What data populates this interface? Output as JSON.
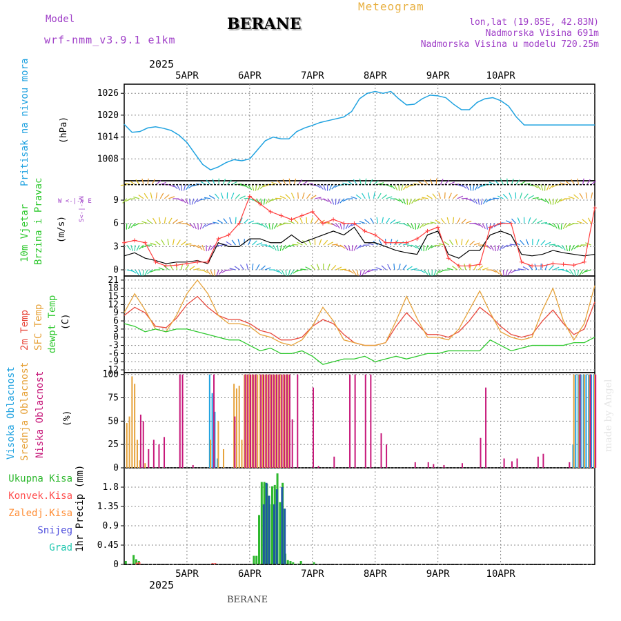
{
  "header": {
    "model_label": "Model",
    "model_name": "wrf-nmm_v3.9.1 e1km",
    "station": "BERANE",
    "product": "Meteogram",
    "coords": "lon,lat (19.85E, 42.83N)",
    "elevation": "Nadmorska Visina 691m",
    "model_elevation": "Nadmorska Visina u modelu 720.25m",
    "year_top": "2025",
    "year_bottom": "2025",
    "footer_station": "BERANE",
    "watermark": "made by Angel"
  },
  "colors": {
    "pressure": "#1fa2e0",
    "temp2m": "#e8483c",
    "sfc_temp": "#e6a23a",
    "dewpoint": "#2ec82e",
    "wind_speed": "#000000",
    "wind_gust": "#ff3b3b",
    "high_cloud": "#1fa2e0",
    "mid_cloud": "#e6a23a",
    "low_cloud": "#c7187a",
    "total_precip": "#2eb82e",
    "conv_precip": "#ff4d4d",
    "freezing_rain": "#ff8c33",
    "snow": "#4b4bdc",
    "graupel": "#22c8b0",
    "accum_precip": "#1e5aa0"
  },
  "chart_data": [
    {
      "type": "line",
      "id": "pressure",
      "label_left": "Pritisak na nivou mora",
      "units": "(hPa)",
      "x_dates": [
        "5APR",
        "6APR",
        "7APR",
        "8APR",
        "9APR",
        "10APR"
      ],
      "yticks": [
        "1008",
        "1014",
        "1020",
        "1026"
      ],
      "ylim": [
        1002,
        1028.5
      ],
      "series": [
        {
          "x": [
            0,
            3,
            6,
            9,
            12,
            15,
            18,
            21,
            24,
            27,
            30,
            33,
            36,
            39,
            42,
            45,
            48,
            51,
            54,
            57,
            60,
            63,
            66,
            69,
            72,
            75,
            78,
            81,
            84,
            87,
            90,
            93,
            96,
            99,
            102,
            105,
            108,
            111,
            114,
            117,
            120,
            123,
            126,
            129,
            132,
            135,
            138,
            141,
            144,
            147,
            150,
            153,
            156,
            159,
            162,
            165,
            168,
            171,
            174,
            177,
            180
          ],
          "values": [
            1017.5,
            1015.3,
            1015.5,
            1016.5,
            1016.8,
            1016.4,
            1015.8,
            1014.5,
            1012.5,
            1009.5,
            1006.5,
            1005.0,
            1005.8,
            1007.0,
            1007.8,
            1007.5,
            1008.0,
            1010.5,
            1013.0,
            1014.0,
            1013.5,
            1013.5,
            1015.5,
            1016.5,
            1017.2,
            1018.0,
            1018.5,
            1019.0,
            1019.5,
            1021.0,
            1024.5,
            1026.0,
            1026.5,
            1026.0,
            1026.5,
            1024.5,
            1022.8,
            1023.0,
            1024.5,
            1025.5,
            1025.3,
            1024.8,
            1023.0,
            1021.5,
            1021.5,
            1023.5,
            1024.5,
            1024.8,
            1024.0,
            1022.5,
            1019.5,
            1017.3,
            1017.3,
            1017.3,
            1017.3,
            1017.3,
            1017.3,
            1017.3,
            1017.3,
            1017.3,
            1017.3
          ]
        }
      ]
    },
    {
      "type": "line",
      "id": "wind",
      "label_left_1": "10m Vjetar",
      "label_left_2": "Brzina i Pravac",
      "units": "(m/s)",
      "compass": "W <-|-> E",
      "compass_ns": "S<-|->N",
      "yticks": [
        "0",
        "3",
        "6",
        "9"
      ],
      "ylim": [
        -0.8,
        11.5
      ],
      "series": [
        {
          "name": "speed",
          "x": [
            0,
            4,
            8,
            12,
            16,
            20,
            24,
            28,
            32,
            36,
            40,
            44,
            48,
            52,
            56,
            60,
            64,
            68,
            72,
            76,
            80,
            84,
            88,
            92,
            96,
            100,
            104,
            108,
            112,
            116,
            120,
            124,
            128,
            132,
            136,
            140,
            144,
            148,
            152,
            156,
            160,
            164,
            168,
            172,
            176,
            180
          ],
          "values": [
            1.8,
            2.2,
            1.5,
            1.2,
            0.8,
            1.0,
            1.0,
            1.2,
            0.8,
            3.5,
            3.0,
            3.0,
            4.0,
            4.0,
            3.5,
            3.5,
            4.5,
            3.5,
            4.0,
            4.5,
            5.0,
            4.5,
            5.5,
            3.5,
            3.5,
            3.0,
            2.5,
            2.2,
            2.0,
            4.5,
            5.0,
            2.0,
            1.5,
            2.5,
            2.5,
            4.5,
            5.0,
            4.5,
            2.0,
            1.8,
            2.0,
            2.5,
            2.2,
            2.0,
            1.8,
            2.0
          ]
        },
        {
          "name": "gust",
          "x": [
            0,
            4,
            8,
            12,
            16,
            20,
            24,
            28,
            32,
            36,
            40,
            44,
            48,
            52,
            56,
            60,
            64,
            68,
            72,
            76,
            80,
            84,
            88,
            92,
            96,
            100,
            104,
            108,
            112,
            116,
            120,
            124,
            128,
            132,
            136,
            140,
            144,
            148,
            152,
            156,
            160,
            164,
            168,
            172,
            176,
            180
          ],
          "values": [
            3.5,
            3.8,
            3.5,
            1.0,
            0.5,
            0.6,
            0.8,
            1.0,
            1.0,
            4.0,
            4.5,
            6.0,
            9.5,
            8.5,
            7.5,
            7.0,
            6.5,
            7.0,
            7.5,
            6.0,
            6.5,
            6.0,
            6.0,
            5.0,
            4.5,
            3.5,
            3.5,
            3.5,
            4.0,
            5.0,
            5.5,
            1.5,
            0.5,
            0.5,
            0.7,
            5.5,
            6.0,
            6.0,
            1.0,
            0.5,
            0.5,
            0.8,
            0.7,
            0.6,
            1.0,
            8.0
          ]
        }
      ]
    },
    {
      "type": "line",
      "id": "temperature",
      "label_left_1": "2m Temp",
      "label_left_2": "SFC Temp",
      "label_left_3": "dewpt Temp",
      "units": "(C)",
      "yticks": [
        "21",
        "18",
        "15",
        "12",
        "9",
        "6",
        "3",
        "0",
        "-3",
        "-6",
        "-9",
        "-12"
      ],
      "ylim": [
        -13,
        22.5
      ],
      "series": [
        {
          "name": "2m",
          "x": [
            0,
            4,
            8,
            12,
            16,
            20,
            24,
            28,
            32,
            36,
            40,
            44,
            48,
            52,
            56,
            60,
            64,
            68,
            72,
            76,
            80,
            84,
            88,
            92,
            96,
            100,
            104,
            108,
            112,
            116,
            120,
            124,
            128,
            132,
            136,
            140,
            144,
            148,
            152,
            156,
            160,
            164,
            168,
            172,
            176,
            180
          ],
          "values": [
            8,
            11,
            9,
            4,
            3.5,
            7,
            12,
            15,
            11,
            8,
            6.5,
            6.5,
            5,
            2.5,
            1.5,
            -1,
            -1,
            0,
            4,
            6.5,
            5,
            1,
            -2,
            -3,
            -3,
            -2,
            4,
            9,
            5,
            1,
            1,
            0,
            2,
            6,
            11,
            8,
            4,
            1,
            0,
            1,
            6,
            10,
            5,
            1,
            3,
            13
          ]
        },
        {
          "name": "sfc",
          "x": [
            0,
            4,
            8,
            12,
            16,
            20,
            24,
            28,
            32,
            36,
            40,
            44,
            48,
            52,
            56,
            60,
            64,
            68,
            72,
            76,
            80,
            84,
            88,
            92,
            96,
            100,
            104,
            108,
            112,
            116,
            120,
            124,
            128,
            132,
            136,
            140,
            144,
            148,
            152,
            156,
            160,
            164,
            168,
            172,
            176,
            180
          ],
          "values": [
            9,
            16,
            10,
            3,
            2,
            8,
            16,
            21,
            16,
            8,
            5,
            5,
            4,
            1,
            0,
            -2,
            -3,
            -1,
            4,
            11,
            6,
            -1,
            -2,
            -3,
            -3,
            -2,
            6,
            15,
            7,
            0,
            0,
            -1,
            3,
            10,
            17,
            9,
            2,
            0,
            -1,
            0,
            10,
            18,
            6,
            -1,
            5,
            19
          ]
        },
        {
          "name": "dewpt",
          "x": [
            0,
            4,
            8,
            12,
            16,
            20,
            24,
            28,
            32,
            36,
            40,
            44,
            48,
            52,
            56,
            60,
            64,
            68,
            72,
            76,
            80,
            84,
            88,
            92,
            96,
            100,
            104,
            108,
            112,
            116,
            120,
            124,
            128,
            132,
            136,
            140,
            144,
            148,
            152,
            156,
            160,
            164,
            168,
            172,
            176,
            180
          ],
          "values": [
            5,
            4,
            2,
            3,
            2,
            3,
            3,
            2,
            1,
            0,
            -1,
            -1,
            -3,
            -5,
            -4,
            -6,
            -6,
            -5,
            -7,
            -10,
            -9,
            -8,
            -8,
            -7,
            -9,
            -8,
            -7,
            -8,
            -7,
            -6,
            -6,
            -5,
            -5,
            -5,
            -5,
            -1,
            -3,
            -5,
            -4,
            -3,
            -3,
            -3,
            -3,
            -2,
            -2,
            0
          ]
        }
      ]
    },
    {
      "type": "bar",
      "id": "clouds",
      "label_left_1": "Visoka Oblacnost",
      "label_left_2": "Srednja Oblacnost",
      "label_left_3": "Niska Oblacnost",
      "units": "(%)",
      "yticks": [
        "0",
        "25",
        "50",
        "75",
        "100"
      ],
      "ylim": [
        0,
        102
      ],
      "series": [
        {
          "name": "high",
          "x": [
            33,
            34,
            35,
            36,
            172,
            173,
            174,
            175,
            176,
            177,
            178,
            179,
            180
          ],
          "values": [
            100,
            80,
            60,
            10,
            25,
            100,
            100,
            100,
            100,
            100,
            100,
            100,
            100
          ]
        },
        {
          "name": "mid",
          "x": [
            1,
            2,
            3,
            4,
            5,
            6,
            8,
            33,
            36,
            38,
            42,
            43,
            44,
            45,
            46,
            47,
            48,
            49,
            50,
            51,
            52,
            53,
            54,
            55,
            56,
            57,
            58,
            59,
            60,
            61,
            62,
            63,
            172,
            174,
            176,
            178,
            180
          ],
          "values": [
            48,
            55,
            98,
            90,
            30,
            8,
            5,
            30,
            50,
            20,
            90,
            85,
            88,
            30,
            100,
            100,
            100,
            100,
            100,
            100,
            100,
            100,
            100,
            100,
            100,
            100,
            100,
            100,
            100,
            100,
            100,
            100,
            100,
            100,
            100,
            100,
            100
          ]
        },
        {
          "name": "low",
          "x": [
            6,
            7,
            9,
            11,
            13,
            15,
            21,
            22,
            26,
            34,
            42,
            46,
            47,
            48,
            49,
            50,
            52,
            53,
            54,
            55,
            56,
            57,
            58,
            59,
            60,
            61,
            62,
            63,
            64,
            66,
            72,
            74,
            80,
            86,
            88,
            92,
            94,
            98,
            100,
            111,
            116,
            118,
            122,
            129,
            136,
            138,
            145,
            148,
            150,
            158,
            160,
            170,
            174,
            178,
            180
          ],
          "values": [
            57,
            50,
            20,
            30,
            25,
            33,
            100,
            100,
            3,
            100,
            55,
            100,
            100,
            100,
            100,
            100,
            100,
            100,
            100,
            100,
            100,
            100,
            100,
            100,
            100,
            100,
            100,
            100,
            52,
            100,
            86,
            2,
            12,
            100,
            100,
            100,
            100,
            37,
            25,
            6,
            6,
            4,
            3,
            5,
            32,
            86,
            10,
            7,
            10,
            12,
            15,
            6,
            100,
            100,
            100
          ]
        }
      ]
    },
    {
      "type": "bar",
      "id": "precip",
      "label_left": "1hr Precip (mm)",
      "legend": [
        "Ukupna Kisa",
        "Konvek.Kisa",
        "Zaledj.Kisa",
        "Snijeg",
        "Grad"
      ],
      "yticks": [
        "0",
        "0.45",
        "0.9",
        "1.35",
        "1.8"
      ],
      "ylim": [
        0,
        2.25
      ],
      "series": [
        {
          "name": "total",
          "x": [
            1,
            4,
            5,
            6,
            50,
            51,
            52,
            53,
            54,
            55,
            56,
            57,
            58,
            59,
            60,
            61,
            62,
            63,
            64,
            65,
            66,
            67,
            68,
            73
          ],
          "values": [
            0.08,
            0.22,
            0.12,
            0.08,
            0.2,
            0.2,
            1.15,
            1.92,
            1.92,
            1.88,
            1.4,
            1.82,
            1.85,
            2.12,
            1.45,
            1.9,
            0.25,
            0.1,
            0.08,
            0.05,
            0.0,
            0.02,
            0.08,
            0.05
          ]
        },
        {
          "name": "accum",
          "x": [
            53,
            54,
            55,
            57,
            58,
            60,
            61
          ],
          "values": [
            1.4,
            1.9,
            1.6,
            1.4,
            1.75,
            1.8,
            1.3
          ]
        },
        {
          "name": "convective",
          "x": [
            4,
            5,
            33,
            34
          ],
          "values": [
            0.04,
            0.05,
            0.03,
            0.03
          ]
        }
      ]
    }
  ]
}
